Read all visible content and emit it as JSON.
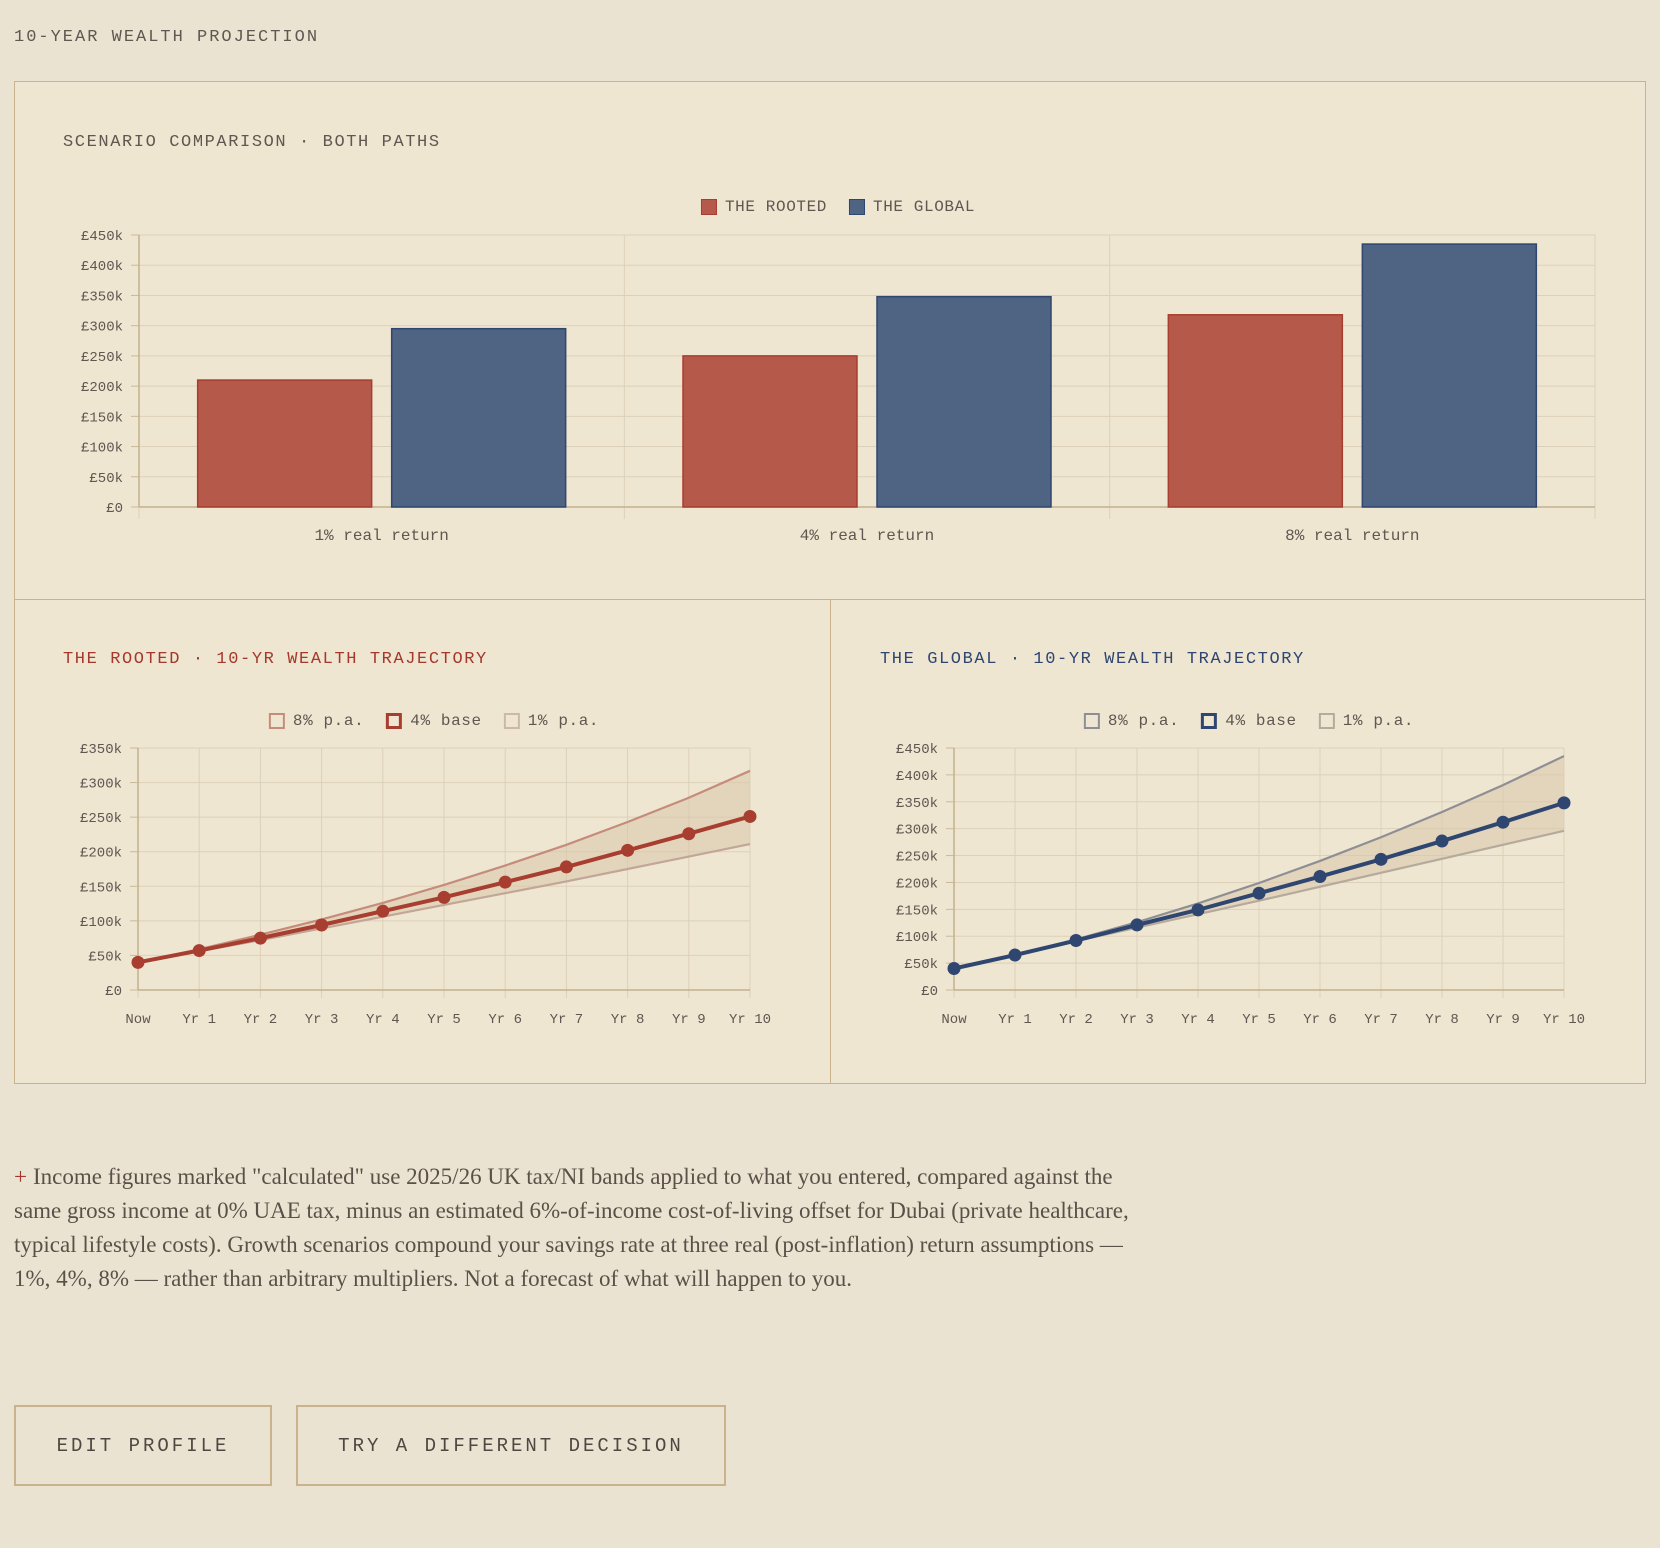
{
  "page": {
    "title": "10-YEAR WEALTH PROJECTION"
  },
  "colors": {
    "rooted": "#b5594a",
    "rooted_line": "#a83e30",
    "global": "#4f6382",
    "global_line": "#2f4670",
    "grid": "#ddd0b8",
    "band": "#d8c7aa",
    "panel_border": "#c9b28c"
  },
  "comparison": {
    "title": "SCENARIO COMPARISON · BOTH PATHS",
    "legend": [
      "THE ROOTED",
      "THE GLOBAL"
    ]
  },
  "rooted_panel": {
    "title": "THE ROOTED · 10-YR WEALTH TRAJECTORY",
    "legend": [
      "8% p.a.",
      "4% base",
      "1% p.a."
    ]
  },
  "global_panel": {
    "title": "THE GLOBAL · 10-YR WEALTH TRAJECTORY",
    "legend": [
      "8% p.a.",
      "4% base",
      "1% p.a."
    ]
  },
  "chart_data": [
    {
      "type": "bar",
      "categories": [
        "1% real return",
        "4% real return",
        "8% real return"
      ],
      "series": [
        {
          "name": "THE ROOTED",
          "values": [
            210000,
            250000,
            318000
          ]
        },
        {
          "name": "THE GLOBAL",
          "values": [
            295000,
            348000,
            435000
          ]
        }
      ],
      "ylim": [
        0,
        450000
      ],
      "yticks": [
        "£0",
        "£50k",
        "£100k",
        "£150k",
        "£200k",
        "£250k",
        "£300k",
        "£350k",
        "£400k",
        "£450k"
      ],
      "grid": true,
      "legend_position": "top-center"
    },
    {
      "type": "line",
      "x": [
        "Now",
        "Yr 1",
        "Yr 2",
        "Yr 3",
        "Yr 4",
        "Yr 5",
        "Yr 6",
        "Yr 7",
        "Yr 8",
        "Yr 9",
        "Yr 10"
      ],
      "series": [
        {
          "name": "8% p.a.",
          "values": [
            40000,
            59000,
            80000,
            102000,
            126000,
            152000,
            180000,
            210000,
            243000,
            278000,
            317000
          ]
        },
        {
          "name": "4% base",
          "values": [
            40000,
            57000,
            75000,
            94000,
            114000,
            134000,
            156000,
            178000,
            202000,
            226000,
            251000
          ]
        },
        {
          "name": "1% p.a.",
          "values": [
            40000,
            56000,
            72000,
            89000,
            106000,
            123000,
            140000,
            157000,
            175000,
            193000,
            211000
          ]
        }
      ],
      "ylim": [
        0,
        350000
      ],
      "yticks": [
        "£0",
        "£50k",
        "£100k",
        "£150k",
        "£200k",
        "£250k",
        "£300k",
        "£350k"
      ],
      "grid": true,
      "legend_position": "top-center"
    },
    {
      "type": "line",
      "x": [
        "Now",
        "Yr 1",
        "Yr 2",
        "Yr 3",
        "Yr 4",
        "Yr 5",
        "Yr 6",
        "Yr 7",
        "Yr 8",
        "Yr 9",
        "Yr 10"
      ],
      "series": [
        {
          "name": "8% p.a.",
          "values": [
            40000,
            65000,
            94000,
            126000,
            161000,
            199000,
            240000,
            284000,
            331000,
            381000,
            435000
          ]
        },
        {
          "name": "4% base",
          "values": [
            40000,
            65000,
            92000,
            121000,
            149000,
            180000,
            211000,
            243000,
            277000,
            312000,
            348000
          ]
        },
        {
          "name": "1% p.a.",
          "values": [
            40000,
            65000,
            91000,
            116000,
            141000,
            166000,
            192000,
            218000,
            244000,
            270000,
            296000
          ]
        }
      ],
      "ylim": [
        0,
        450000
      ],
      "yticks": [
        "£0",
        "£50k",
        "£100k",
        "£150k",
        "£200k",
        "£250k",
        "£300k",
        "£350k",
        "£400k",
        "£450k"
      ],
      "grid": true,
      "legend_position": "top-center"
    }
  ],
  "footnote": {
    "marker": "+",
    "text": "Income figures marked \"calculated\" use 2025/26 UK tax/NI bands applied to what you entered, compared against the same gross income at 0% UAE tax, minus an estimated 6%-of-income cost-of-living offset for Dubai (private healthcare, typical lifestyle costs). Growth scenarios compound your savings rate at three real (post-inflation) return assumptions — 1%, 4%, 8% — rather than arbitrary multipliers. Not a forecast of what will happen to you."
  },
  "buttons": {
    "edit_profile": "EDIT PROFILE",
    "try_different": "TRY A DIFFERENT DECISION"
  }
}
